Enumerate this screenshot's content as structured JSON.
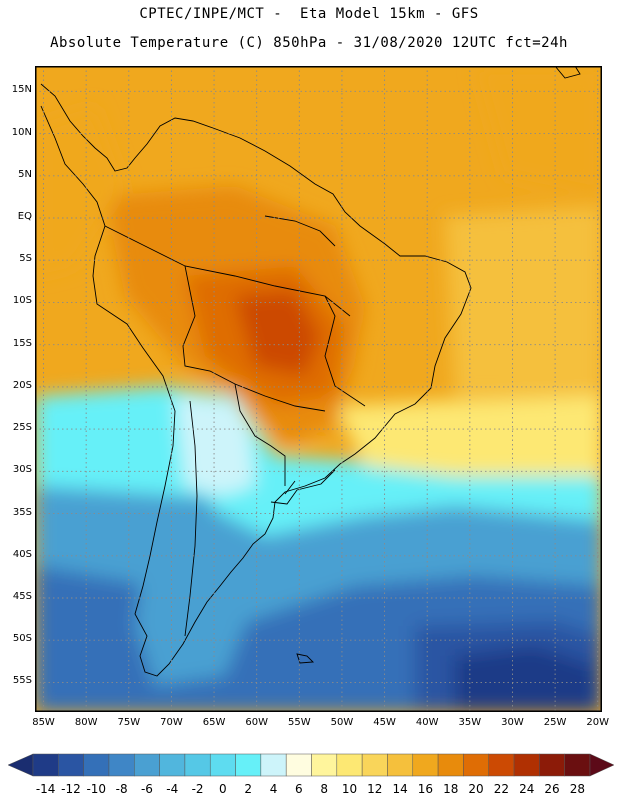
{
  "header": {
    "line1": "CPTEC/INPE/MCT -  Eta Model 15km - GFS",
    "line2": "Absolute Temperature (C) 850hPa - 31/08/2020 12UTC fct=24h"
  },
  "map": {
    "lat_labels": [
      "15N",
      "10N",
      "5N",
      "EQ",
      "5S",
      "10S",
      "15S",
      "20S",
      "25S",
      "30S",
      "35S",
      "40S",
      "45S",
      "50S",
      "55S"
    ],
    "lon_labels": [
      "85W",
      "80W",
      "75W",
      "70W",
      "65W",
      "60W",
      "55W",
      "50W",
      "45W",
      "40W",
      "35W",
      "30W",
      "25W",
      "20W"
    ],
    "lat_values": [
      15,
      10,
      5,
      0,
      -5,
      -10,
      -15,
      -20,
      -25,
      -30,
      -35,
      -40,
      -45,
      -50,
      -55
    ],
    "lon_values": [
      -85,
      -80,
      -75,
      -70,
      -65,
      -60,
      -55,
      -50,
      -45,
      -40,
      -35,
      -30,
      -25,
      -20
    ],
    "extent": {
      "west": -86,
      "east": -19.5,
      "north": 18,
      "south": -58.5
    }
  },
  "colorbar": {
    "labels": [
      "-14",
      "-12",
      "-10",
      "-8",
      "-6",
      "-4",
      "-2",
      "0",
      "2",
      "4",
      "6",
      "8",
      "10",
      "12",
      "14",
      "16",
      "18",
      "20",
      "22",
      "24",
      "26",
      "28"
    ],
    "colors": [
      "#1f3b87",
      "#2a55a3",
      "#3470b8",
      "#3f86c6",
      "#4aa0d2",
      "#51b6dd",
      "#55c8e6",
      "#5edcf0",
      "#66f0f8",
      "#cdf4fa",
      "#fffde0",
      "#fff59c",
      "#fde873",
      "#f9d55a",
      "#f5c03c",
      "#f0a81e",
      "#e88b0c",
      "#df6d05",
      "#cc4a03",
      "#b03002",
      "#8c1b08",
      "#6a0f10"
    ],
    "under_color": "#1a2d70",
    "over_color": "#5c0a18"
  }
}
